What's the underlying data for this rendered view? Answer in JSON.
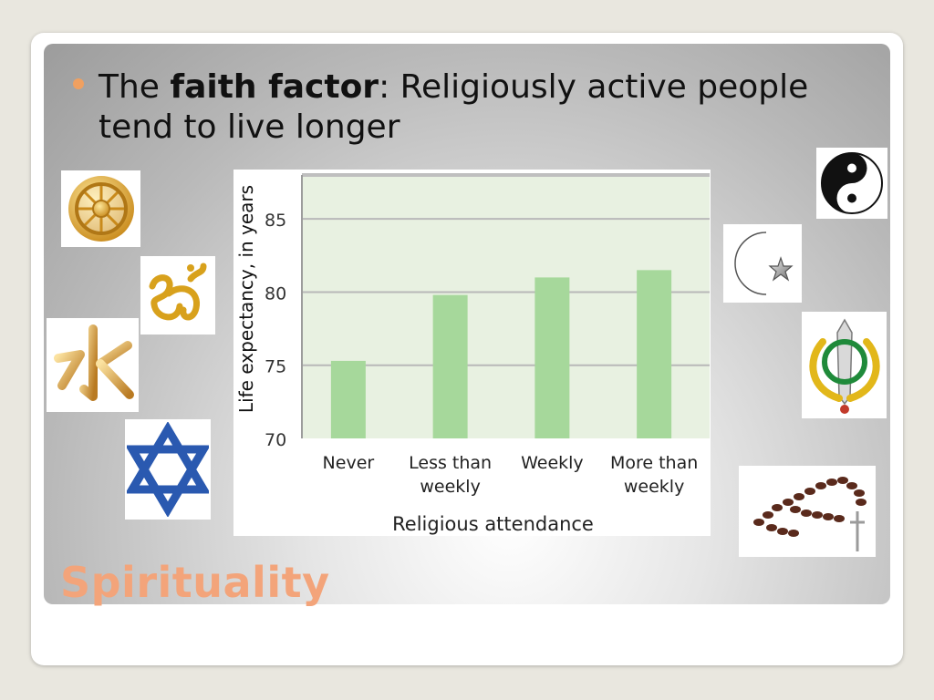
{
  "slide": {
    "bullet": {
      "lead": "The ",
      "bold": "faith factor",
      "rest": ": Religiously active people tend to live longer"
    },
    "title": "Spirituality",
    "colors": {
      "title": "#f3a47a",
      "bullet_dot": "#f0a060",
      "bar": "#a6d89b",
      "plot_bg": "#e8f1e1"
    },
    "icons": [
      "dharma-wheel-icon",
      "om-icon",
      "kanji-water-icon",
      "star-of-david-icon",
      "yin-yang-icon",
      "crescent-star-icon",
      "khanda-icon",
      "rosary-icon"
    ]
  },
  "chart_data": {
    "type": "bar",
    "categories": [
      "Never",
      "Less than weekly",
      "Weekly",
      "More than weekly"
    ],
    "category_lines": [
      [
        "Never"
      ],
      [
        "Less than",
        "weekly"
      ],
      [
        "Weekly"
      ],
      [
        "More than",
        "weekly"
      ]
    ],
    "values": [
      75.3,
      79.8,
      81.0,
      81.5
    ],
    "ylim": [
      70,
      88
    ],
    "yticks": [
      70,
      75,
      80,
      85
    ],
    "ytick_labels": [
      "70",
      "75",
      "80",
      "85"
    ],
    "xlabel": "Religious attendance",
    "ylabel": "Life expectancy, in years",
    "grid": true
  }
}
